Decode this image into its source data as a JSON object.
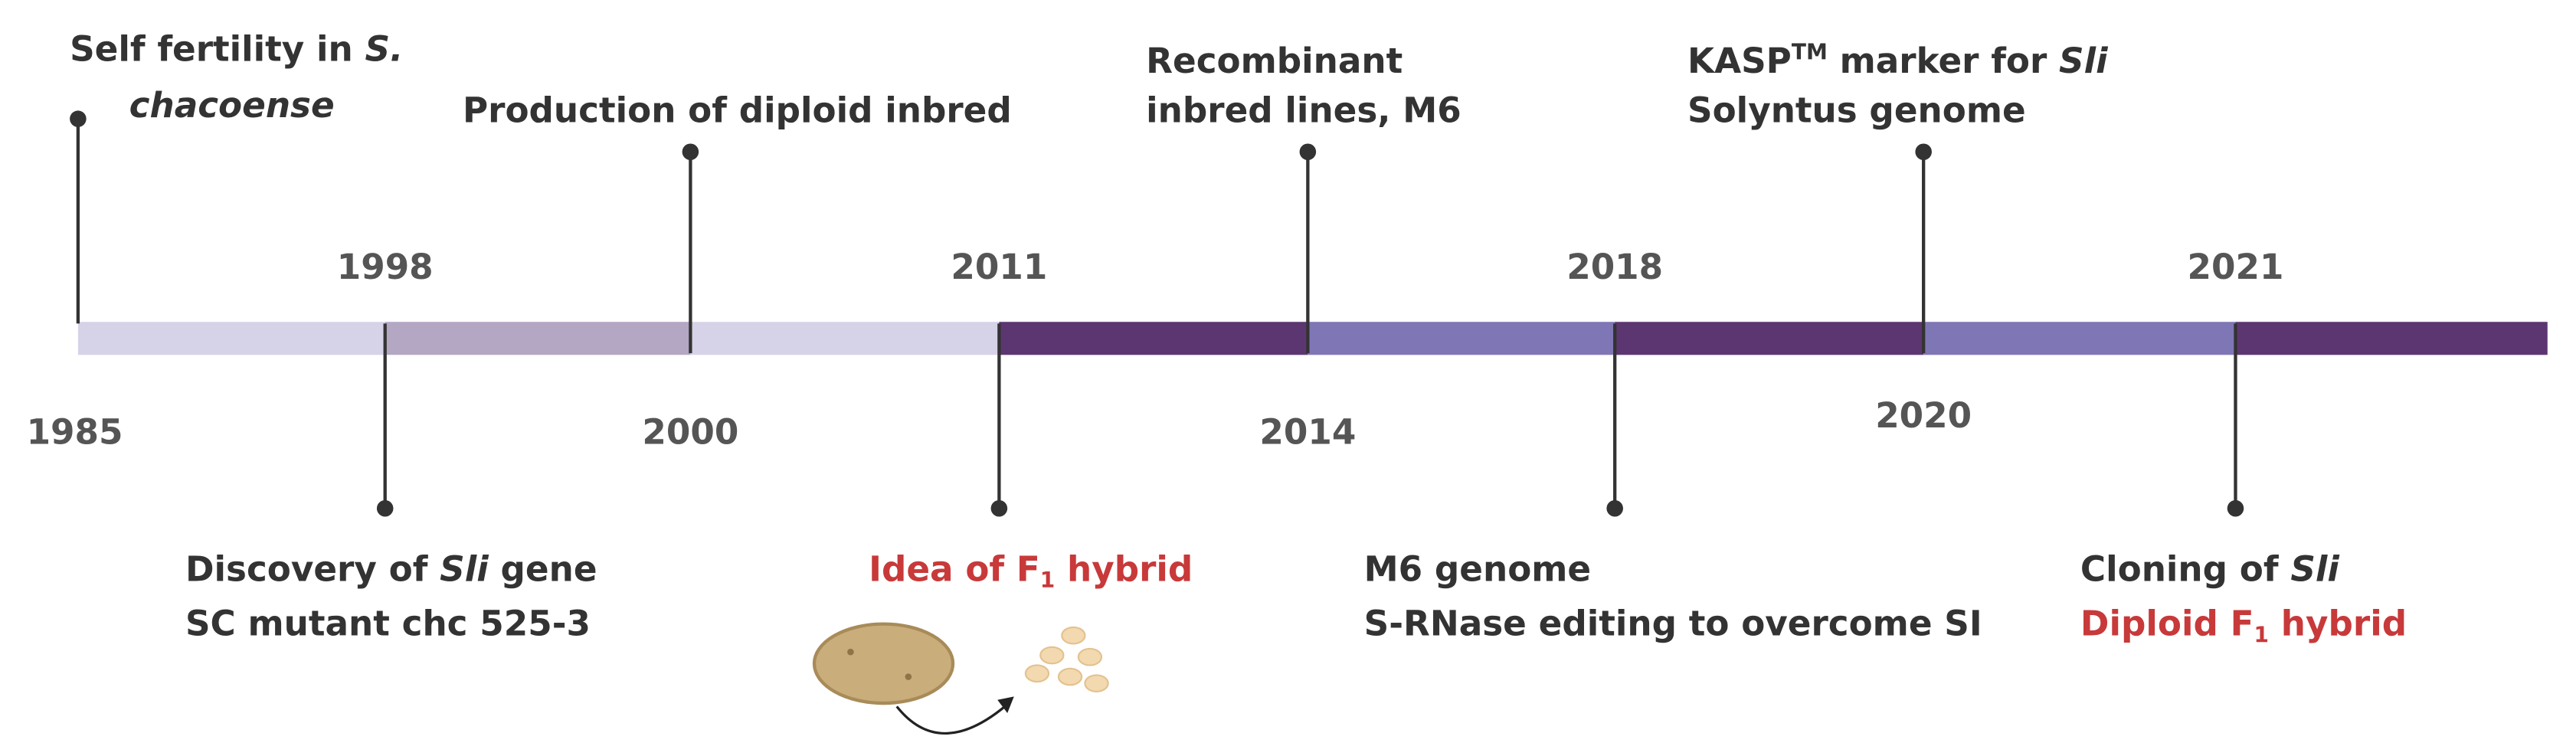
{
  "years": [
    "1985",
    "1998",
    "2000",
    "2011",
    "2014",
    "2018",
    "2020",
    "2021"
  ],
  "events": [
    {
      "lines": [
        [
          "Self fertility in ",
          "S."
        ],
        [
          "chacoense"
        ]
      ]
    },
    {
      "lines": [
        [
          "Discovery of ",
          "Sli",
          " gene"
        ],
        [
          "SC mutant chc 525-3"
        ]
      ]
    },
    {
      "lines": [
        [
          "Production of diploid inbred"
        ]
      ]
    },
    {
      "lines": [
        [
          "Idea of F",
          "1",
          " hybrid"
        ]
      ]
    },
    {
      "lines": [
        [
          "Recombinant"
        ],
        [
          "inbred lines, M6"
        ]
      ]
    },
    {
      "lines": [
        [
          "M6 genome"
        ],
        [
          "S-RNase editing to overcome SI"
        ]
      ]
    },
    {
      "lines": [
        [
          "KASP",
          "TM",
          " marker for ",
          "Sli"
        ],
        [
          "Solyntus genome"
        ]
      ]
    },
    {
      "lines": [
        [
          "Cloning of ",
          "Sli"
        ],
        [
          "Diploid F",
          "1",
          " hybrid"
        ]
      ]
    }
  ]
}
